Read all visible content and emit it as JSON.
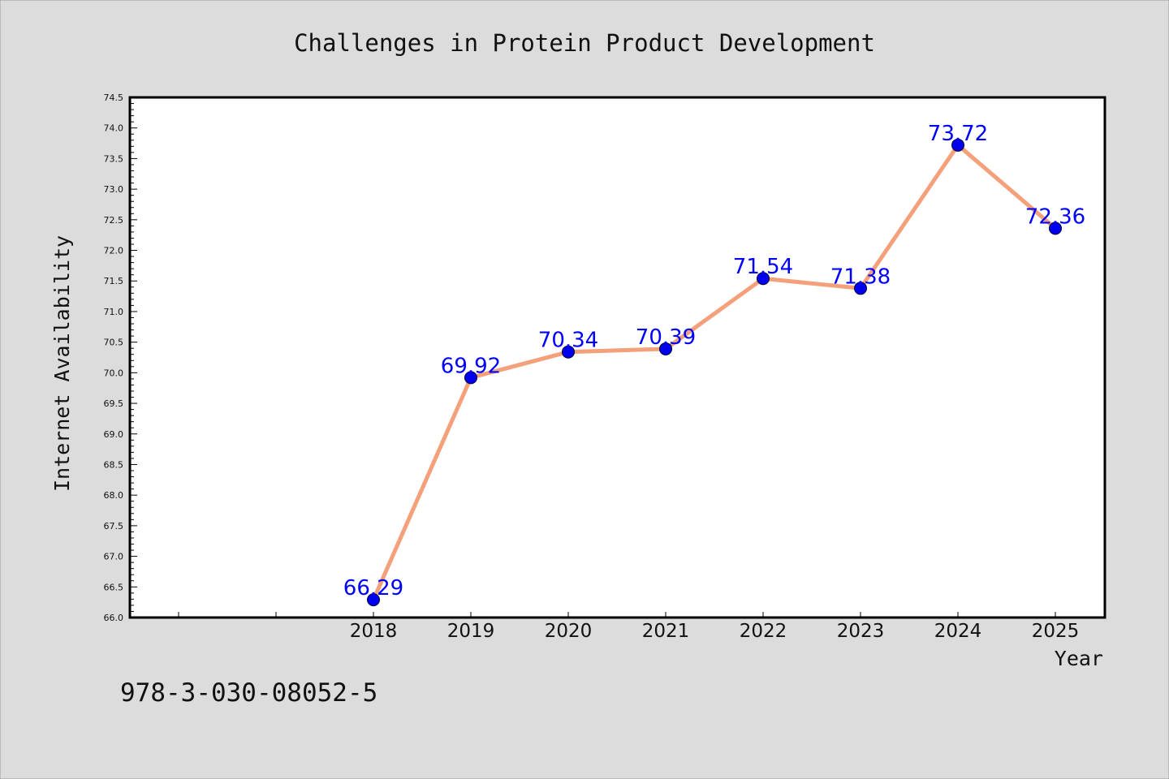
{
  "chart_data": {
    "type": "line",
    "title": "Challenges in Protein Product Development",
    "xlabel": "Year",
    "ylabel": "Internet Availability",
    "categories": [
      "2018",
      "2019",
      "2020",
      "2021",
      "2022",
      "2023",
      "2024",
      "2025"
    ],
    "series": [
      {
        "values": [
          66.29,
          69.92,
          70.34,
          70.39,
          71.54,
          71.38,
          73.72,
          72.36
        ],
        "value_labels": [
          "66.29",
          "69.92",
          "70.34",
          "70.39",
          "71.54",
          "71.38",
          "73.72",
          "72.36"
        ],
        "line_color": "#f4a07a",
        "marker_color": "#0000ee"
      }
    ],
    "ylim": [
      66.0,
      74.5
    ],
    "y_ticks": [
      "66.0",
      "66.5",
      "67.0",
      "67.5",
      "68.0",
      "68.5",
      "69.0",
      "69.5",
      "70.0",
      "70.5",
      "71.0",
      "71.5",
      "72.0",
      "72.5",
      "73.0",
      "73.5",
      "74.0",
      "74.5"
    ],
    "grid": false,
    "legend": "none",
    "background_color": "#dcdcdc",
    "plot_background_color": "#ffffff",
    "label_color": "#0000ff"
  },
  "footer_text": "978-3-030-08052-5"
}
